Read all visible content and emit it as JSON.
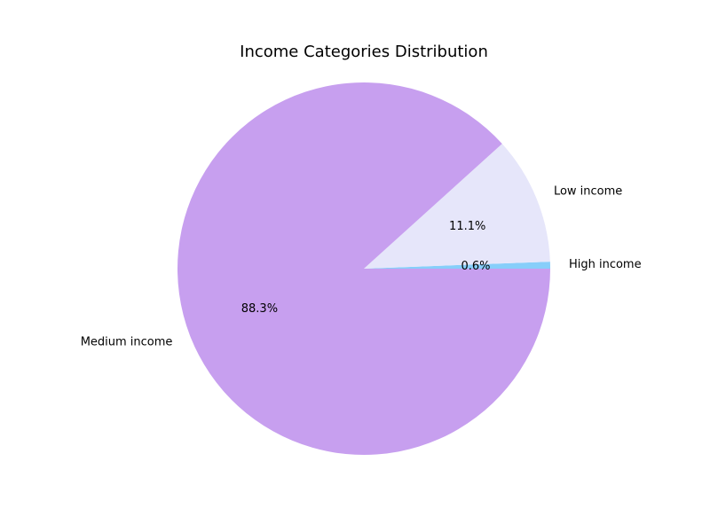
{
  "chart_data": {
    "type": "pie",
    "title": "Income Categories Distribution",
    "slices": [
      {
        "label": "High income",
        "value": 0.6,
        "pct_label": "0.6%",
        "color": "#87cefa"
      },
      {
        "label": "Low income",
        "value": 11.1,
        "pct_label": "11.1%",
        "color": "#e6e6fa"
      },
      {
        "label": "Medium income",
        "value": 88.3,
        "pct_label": "88.3%",
        "color": "#c79fef"
      }
    ],
    "start_angle_deg": 0,
    "direction": "counterclockwise"
  }
}
